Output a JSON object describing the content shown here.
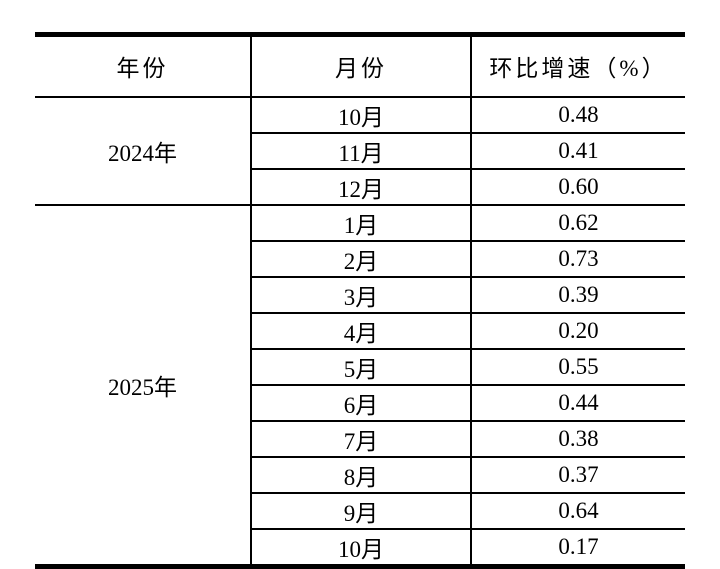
{
  "table": {
    "columns": [
      "年份",
      "月份",
      "环比增速（%）"
    ],
    "groups": [
      {
        "year": "2024年",
        "rows": [
          {
            "month": "10月",
            "value": "0.48"
          },
          {
            "month": "11月",
            "value": "0.41"
          },
          {
            "month": "12月",
            "value": "0.60"
          }
        ]
      },
      {
        "year": "2025年",
        "rows": [
          {
            "month": "1月",
            "value": "0.62"
          },
          {
            "month": "2月",
            "value": "0.73"
          },
          {
            "month": "3月",
            "value": "0.39"
          },
          {
            "month": "4月",
            "value": "0.20"
          },
          {
            "month": "5月",
            "value": "0.55"
          },
          {
            "month": "6月",
            "value": "0.44"
          },
          {
            "month": "7月",
            "value": "0.38"
          },
          {
            "month": "8月",
            "value": "0.37"
          },
          {
            "month": "9月",
            "value": "0.64"
          },
          {
            "month": "10月",
            "value": "0.17"
          }
        ]
      }
    ]
  },
  "colors": {
    "text": "#000000",
    "border": "#000000",
    "background": "#ffffff"
  }
}
